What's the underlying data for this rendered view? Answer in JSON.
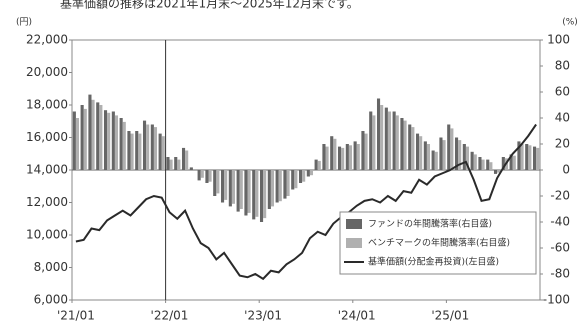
{
  "chart_data": {
    "type": "bar-line",
    "title": "基準価額の推移は2021年1月末～2025年12月末です。",
    "y_label": "(円)",
    "y2_label": "(%)",
    "categories": [
      "'21/01",
      null,
      null,
      null,
      null,
      null,
      null,
      null,
      null,
      null,
      null,
      null,
      "'22/01",
      null,
      null,
      null,
      null,
      null,
      null,
      null,
      null,
      null,
      null,
      null,
      "'23/01",
      null,
      null,
      null,
      null,
      null,
      null,
      null,
      null,
      null,
      null,
      null,
      "'24/01",
      null,
      null,
      null,
      null,
      null,
      null,
      null,
      null,
      null,
      null,
      null,
      "'25/01",
      null,
      null,
      null,
      null,
      null,
      null,
      null,
      null,
      null,
      null,
      null
    ],
    "ylim": [
      6000,
      22000
    ],
    "yticks": [
      {
        "value": 6000,
        "label": "6,000"
      },
      {
        "value": 8000,
        "label": "8,000"
      },
      {
        "value": 10000,
        "label": "10,000"
      },
      {
        "value": 12000,
        "label": "12,000"
      },
      {
        "value": 14000,
        "label": "14,000"
      },
      {
        "value": 16000,
        "label": "16,000"
      },
      {
        "value": 18000,
        "label": "18,000"
      },
      {
        "value": 20000,
        "label": "20,000"
      },
      {
        "value": 22000,
        "label": "22,000"
      }
    ],
    "y2lim": [
      -100,
      100
    ],
    "y2ticks": [
      -100,
      -80,
      -60,
      -40,
      -20,
      0,
      20,
      40,
      60,
      80,
      100
    ],
    "series": [
      {
        "name": "ファンドの年間騰落率(右目盛)",
        "type": "bar",
        "axis": "y2",
        "color": "#666666",
        "values": [
          45,
          50,
          58,
          52,
          46,
          45,
          40,
          30,
          30,
          38,
          35,
          28,
          10,
          10,
          17,
          2,
          -8,
          -10,
          -20,
          -25,
          -28,
          -32,
          -35,
          -38,
          -40,
          -30,
          -25,
          -22,
          -15,
          -10,
          -5,
          8,
          20,
          26,
          18,
          20,
          22,
          30,
          45,
          55,
          48,
          45,
          40,
          35,
          28,
          22,
          15,
          25,
          35,
          25,
          20,
          14,
          10,
          8,
          -3,
          10,
          12,
          22,
          20,
          18
        ]
      },
      {
        "name": "ベンチマークの年間騰落率(右目盛)",
        "type": "bar",
        "axis": "y2",
        "color": "#b0b0b0",
        "values": [
          40,
          47,
          54,
          50,
          44,
          42,
          37,
          28,
          28,
          35,
          33,
          26,
          8,
          8,
          15,
          0,
          -6,
          -9,
          -18,
          -23,
          -26,
          -30,
          -33,
          -36,
          -37,
          -28,
          -24,
          -20,
          -14,
          -9,
          -4,
          7,
          18,
          24,
          17,
          19,
          20,
          28,
          42,
          50,
          45,
          42,
          38,
          33,
          26,
          20,
          14,
          23,
          32,
          23,
          18,
          12,
          8,
          6,
          -2,
          9,
          11,
          20,
          19,
          17
        ]
      },
      {
        "name": "基準価額(分配金再投資)(左目盛)",
        "type": "line",
        "color": "#2a2a2a",
        "values": [
          9600,
          9700,
          10400,
          10300,
          10900,
          11200,
          11500,
          11200,
          11700,
          12200,
          12400,
          12300,
          11400,
          11000,
          11500,
          10400,
          9500,
          9200,
          8500,
          8900,
          8200,
          7500,
          7400,
          7600,
          7300,
          7800,
          7700,
          8200,
          8500,
          8900,
          9800,
          10200,
          10000,
          10700,
          11100,
          11400,
          11800,
          12100,
          12200,
          12000,
          12400,
          12100,
          12700,
          12600,
          13400,
          13100,
          13600,
          13800,
          14000,
          14300,
          14500,
          13400,
          12100,
          12200,
          13500,
          14300,
          15000,
          15500,
          16100,
          16800
        ]
      }
    ],
    "legend": "lower right"
  }
}
